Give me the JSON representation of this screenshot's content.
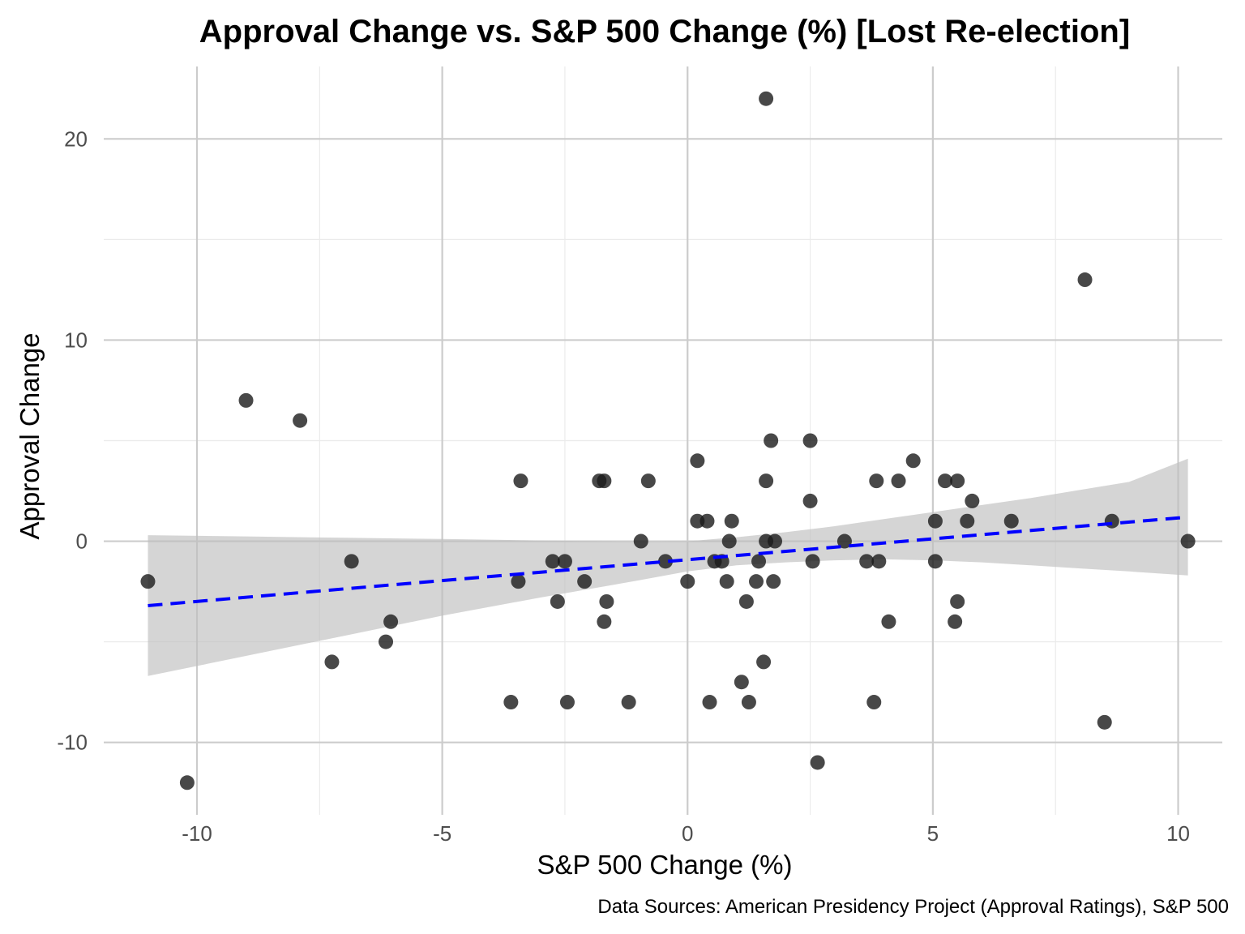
{
  "chart_data": {
    "type": "scatter",
    "title": "Approval Change vs. S&P 500 Change (%) [Lost Re-election]",
    "xlabel": "S&P 500 Change (%)",
    "ylabel": "Approval Change",
    "caption": "Data Sources: American Presidency Project (Approval Ratings), S&P 500",
    "xlim": [
      -11.9,
      10.9
    ],
    "ylim": [
      -13.6,
      23.6
    ],
    "x_ticks": [
      -10,
      -5,
      0,
      5,
      10
    ],
    "y_ticks": [
      -10,
      0,
      10,
      20
    ],
    "x_tick_labels": [
      "-10",
      "-5",
      "0",
      "5",
      "10"
    ],
    "y_tick_labels": [
      "-10",
      "0",
      "10",
      "20"
    ],
    "grid": true,
    "point_color": "#1a1a1a",
    "trend_color": "#0000ff",
    "ribbon_color": "#bfbfbf",
    "points": [
      {
        "x": -11.0,
        "y": -2
      },
      {
        "x": -10.2,
        "y": -12
      },
      {
        "x": -9.0,
        "y": 7
      },
      {
        "x": -7.9,
        "y": 6
      },
      {
        "x": -7.25,
        "y": -6
      },
      {
        "x": -6.85,
        "y": -1
      },
      {
        "x": -6.15,
        "y": -5
      },
      {
        "x": -6.05,
        "y": -4
      },
      {
        "x": -3.6,
        "y": -8
      },
      {
        "x": -3.4,
        "y": 3
      },
      {
        "x": -3.45,
        "y": -2
      },
      {
        "x": -2.75,
        "y": -1
      },
      {
        "x": -2.65,
        "y": -3
      },
      {
        "x": -2.5,
        "y": -1
      },
      {
        "x": -2.45,
        "y": -8
      },
      {
        "x": -2.1,
        "y": -2
      },
      {
        "x": -1.8,
        "y": 3
      },
      {
        "x": -1.7,
        "y": 3
      },
      {
        "x": -1.7,
        "y": -4
      },
      {
        "x": -1.65,
        "y": -3
      },
      {
        "x": -1.2,
        "y": -8
      },
      {
        "x": -0.95,
        "y": 0
      },
      {
        "x": -0.8,
        "y": 3
      },
      {
        "x": -0.45,
        "y": -1
      },
      {
        "x": 0.0,
        "y": -2
      },
      {
        "x": 0.2,
        "y": 1
      },
      {
        "x": 0.2,
        "y": 4
      },
      {
        "x": 0.4,
        "y": 1
      },
      {
        "x": 0.45,
        "y": -8
      },
      {
        "x": 0.55,
        "y": -1
      },
      {
        "x": 0.7,
        "y": -1
      },
      {
        "x": 0.8,
        "y": -2
      },
      {
        "x": 0.85,
        "y": 0
      },
      {
        "x": 0.9,
        "y": 1
      },
      {
        "x": 1.1,
        "y": -7
      },
      {
        "x": 1.2,
        "y": -3
      },
      {
        "x": 1.25,
        "y": -8
      },
      {
        "x": 1.4,
        "y": -2
      },
      {
        "x": 1.45,
        "y": -1
      },
      {
        "x": 1.55,
        "y": -6
      },
      {
        "x": 1.6,
        "y": 22
      },
      {
        "x": 1.6,
        "y": 3
      },
      {
        "x": 1.6,
        "y": 0
      },
      {
        "x": 1.7,
        "y": 5
      },
      {
        "x": 1.75,
        "y": -2
      },
      {
        "x": 1.78,
        "y": 0
      },
      {
        "x": 2.5,
        "y": 5
      },
      {
        "x": 2.5,
        "y": 2
      },
      {
        "x": 2.55,
        "y": -1
      },
      {
        "x": 2.65,
        "y": -11
      },
      {
        "x": 3.2,
        "y": 0
      },
      {
        "x": 3.65,
        "y": -1
      },
      {
        "x": 3.8,
        "y": -8
      },
      {
        "x": 3.85,
        "y": 3
      },
      {
        "x": 3.9,
        "y": -1
      },
      {
        "x": 4.1,
        "y": -4
      },
      {
        "x": 4.3,
        "y": 3
      },
      {
        "x": 4.6,
        "y": 4
      },
      {
        "x": 5.05,
        "y": 1
      },
      {
        "x": 5.05,
        "y": -1
      },
      {
        "x": 5.25,
        "y": 3
      },
      {
        "x": 5.45,
        "y": -4
      },
      {
        "x": 5.5,
        "y": 3
      },
      {
        "x": 5.5,
        "y": -3
      },
      {
        "x": 5.7,
        "y": 1
      },
      {
        "x": 5.8,
        "y": 2
      },
      {
        "x": 6.6,
        "y": 1
      },
      {
        "x": 8.1,
        "y": 13
      },
      {
        "x": 8.5,
        "y": -9
      },
      {
        "x": 8.65,
        "y": 1
      },
      {
        "x": 10.2,
        "y": 0
      }
    ],
    "trend": {
      "x": [
        -11.0,
        10.2
      ],
      "y": [
        -3.2,
        1.2
      ]
    },
    "ribbon": {
      "x": [
        -11.0,
        -9.0,
        -7.0,
        -5.0,
        -3.0,
        -1.0,
        0.0,
        1.0,
        2.0,
        3.0,
        4.0,
        5.0,
        6.0,
        7.0,
        8.0,
        9.0,
        10.2
      ],
      "upper": [
        0.3,
        0.24,
        0.17,
        0.11,
        0.04,
        -0.03,
        0.0,
        0.2,
        0.45,
        0.75,
        1.1,
        1.45,
        1.8,
        2.15,
        2.55,
        2.95,
        4.1
      ],
      "lower": [
        -6.7,
        -5.7,
        -4.7,
        -3.7,
        -2.8,
        -1.95,
        -1.5,
        -1.2,
        -1.05,
        -0.95,
        -0.9,
        -0.95,
        -1.05,
        -1.2,
        -1.35,
        -1.5,
        -1.7
      ]
    }
  }
}
